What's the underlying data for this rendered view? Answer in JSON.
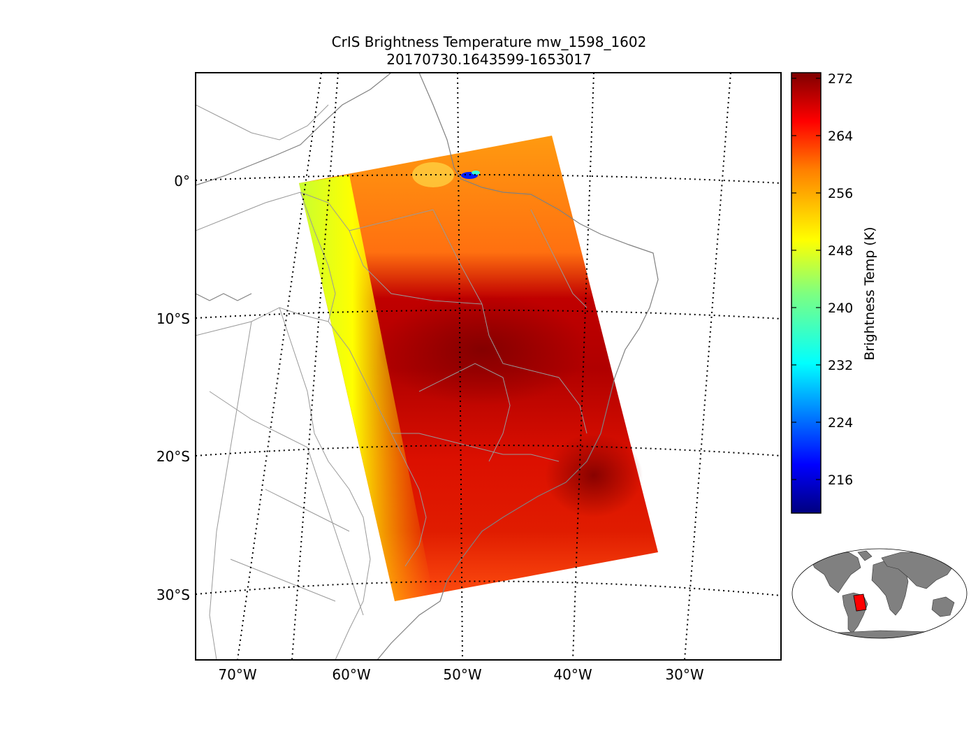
{
  "title": {
    "line1": "CrIS Brightness Temperature mw_1598_1602",
    "line2": "20170730.1643599-1653017"
  },
  "axes": {
    "lon_ticks": [
      "70°W",
      "60°W",
      "50°W",
      "40°W",
      "30°W"
    ],
    "lat_ticks": [
      "0°",
      "10°S",
      "20°S",
      "30°S"
    ]
  },
  "colorbar": {
    "label": "Brightness Temp (K)",
    "ticks": [
      "272",
      "264",
      "256",
      "248",
      "240",
      "232",
      "224",
      "216"
    ],
    "colormap": [
      "#00007f",
      "#0000ff",
      "#007fff",
      "#00ffff",
      "#7fff7f",
      "#ffff00",
      "#ff7f00",
      "#ff0000",
      "#7f0000"
    ]
  },
  "colors": {
    "coastline": "#808080",
    "borders": "#999999",
    "gridline": "#000000",
    "land_inset": "#808080",
    "swath_inset": "#ff0000"
  }
}
